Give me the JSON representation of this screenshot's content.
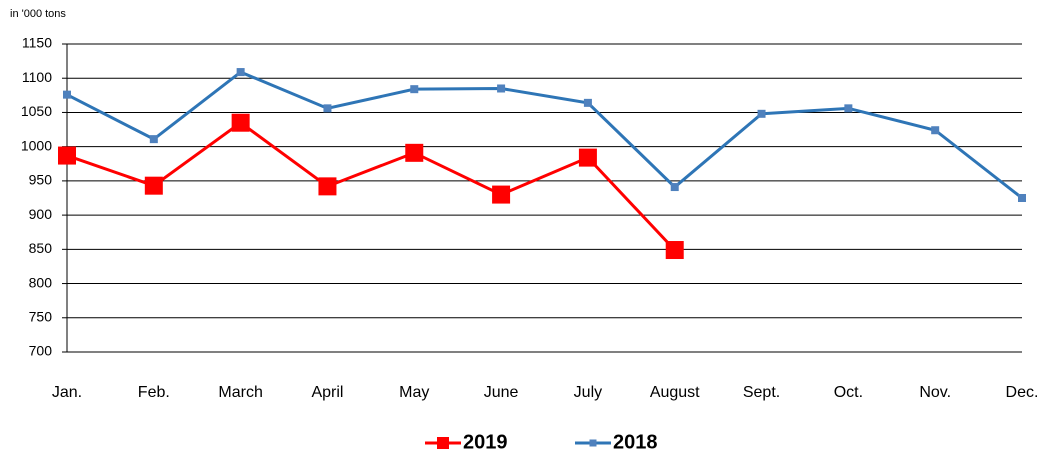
{
  "chart_data": {
    "type": "line",
    "ylabel": "in '000 tons",
    "categories": [
      "Jan.",
      "Feb.",
      "March",
      "April",
      "May",
      "June",
      "July",
      "August",
      "Sept.",
      "Oct.",
      "Nov.",
      "Dec."
    ],
    "series": [
      {
        "name": "2019",
        "color": "#ff0000",
        "values": [
          987,
          943,
          1035,
          942,
          991,
          930,
          984,
          849,
          null,
          null,
          null,
          null
        ]
      },
      {
        "name": "2018",
        "color": "#2e75b6",
        "values": [
          1076,
          1011,
          1109,
          1056,
          1084,
          1085,
          1064,
          941,
          1048,
          1056,
          1024,
          925
        ]
      }
    ],
    "ylim": [
      700,
      1150
    ],
    "yticks": [
      700,
      750,
      800,
      850,
      900,
      950,
      1000,
      1050,
      1100,
      1150
    ],
    "grid": true,
    "legend": "bottom"
  }
}
